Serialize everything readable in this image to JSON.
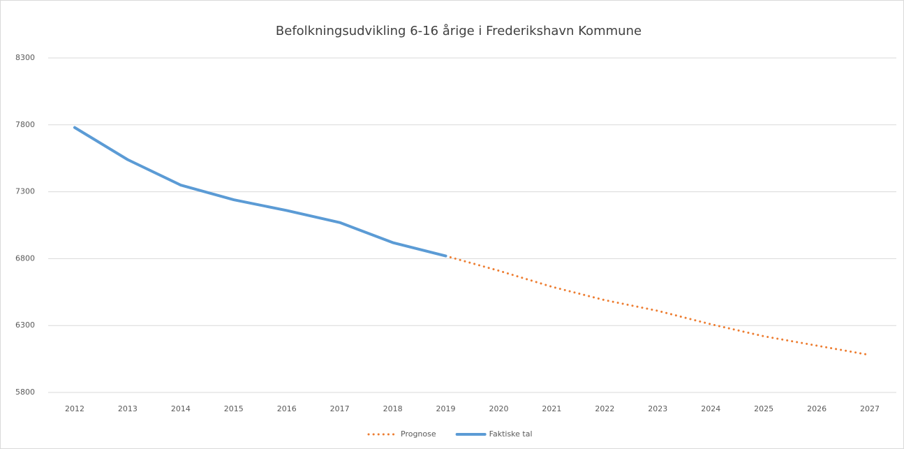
{
  "chart_data": {
    "type": "line",
    "title": "Befolkningsudvikling 6-16 årige i Frederikshavn Kommune",
    "categories": [
      "2012",
      "2013",
      "2014",
      "2015",
      "2016",
      "2017",
      "2018",
      "2019",
      "2020",
      "2021",
      "2022",
      "2023",
      "2024",
      "2025",
      "2026",
      "2027"
    ],
    "series": [
      {
        "name": "Prognose",
        "color": "#ed7d31",
        "dashed": true,
        "values": [
          null,
          null,
          null,
          null,
          null,
          null,
          null,
          6820,
          6710,
          6590,
          6490,
          6410,
          6310,
          6220,
          6150,
          6080
        ]
      },
      {
        "name": "Faktiske tal",
        "color": "#5b9bd5",
        "dashed": false,
        "values": [
          7780,
          7540,
          7350,
          7240,
          7160,
          7070,
          6920,
          6820,
          null,
          null,
          null,
          null,
          null,
          null,
          null,
          null
        ]
      }
    ],
    "ylim": [
      5800,
      8300
    ],
    "yticks": [
      5800,
      6300,
      6800,
      7300,
      7800,
      8300
    ],
    "grid": true,
    "legend": "bottom"
  }
}
